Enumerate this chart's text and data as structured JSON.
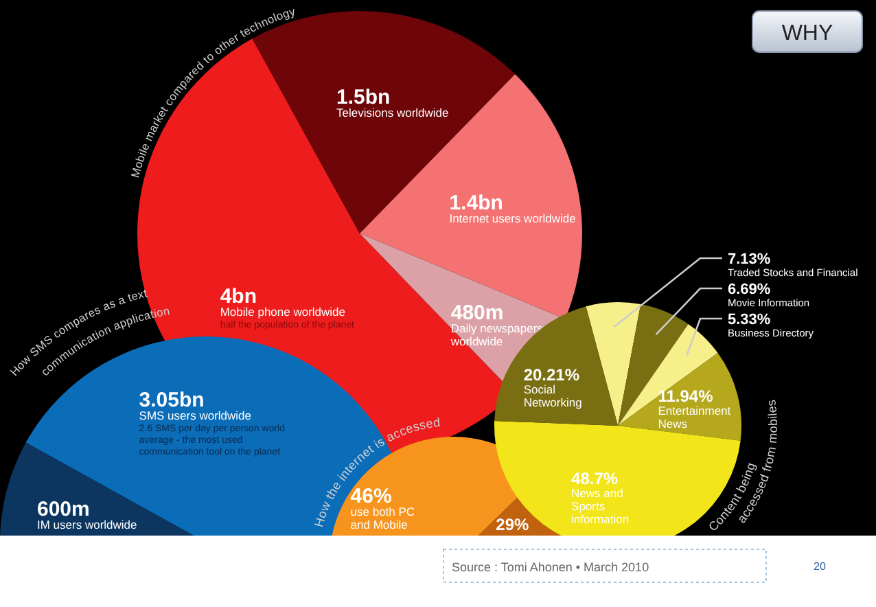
{
  "chart_data": [
    {
      "type": "pie",
      "title": "Mobile market compared to other technology",
      "categories": [
        "Mobile phone worldwide",
        "Televisions worldwide",
        "Internet users worldwide",
        "Daily newspapers worldwide"
      ],
      "values": [
        4000000000,
        1500000000,
        1400000000,
        480000000
      ],
      "value_labels": [
        "4bn",
        "1.5bn",
        "1.4bn",
        "480m"
      ],
      "colors": [
        "#ee1c1c",
        "#6e0508",
        "#f47272",
        "#dba1a6"
      ],
      "annotations": [
        {
          "text": "half the population of the planet",
          "x": "Mobile phone worldwide"
        },
        "WHY",
        "Source : Tomi Ahonen • March 2010",
        "20"
      ]
    },
    {
      "type": "pie",
      "title": "How SMS compares as a text\ncommunication application",
      "categories": [
        "SMS users worldwide",
        "IM users worldwide"
      ],
      "values": [
        3050000000,
        600000000
      ],
      "value_labels": [
        "3.05bn",
        "600m"
      ],
      "colors": [
        "#0b6cb8",
        "#0c3560"
      ],
      "annotations": [
        {
          "text": "2.6 SMS per day per person world average - the most used communication tool on the planet",
          "x": "SMS users worldwide"
        }
      ]
    },
    {
      "type": "pie",
      "title": "How the internet is accessed",
      "categories": [
        "use both PC and Mobile",
        null,
        null
      ],
      "values": [
        46,
        29,
        null
      ],
      "value_labels": [
        "46%",
        "29%",
        null
      ],
      "colors": [
        "#f7941d",
        "#c0620e",
        "#e8841a"
      ]
    },
    {
      "type": "pie",
      "title": "Content being\naccessed from mobiles",
      "categories": [
        "Traded Stocks and Financial",
        "Movie Information",
        "Business Directory",
        "Entertainment News",
        "News and Sports information",
        "Social Networking"
      ],
      "values": [
        7.13,
        6.69,
        5.33,
        11.94,
        48.7,
        20.21
      ],
      "value_labels": [
        "7.13%",
        "6.69%",
        "5.33%",
        "11.94%",
        "48.7%",
        "20.21%"
      ],
      "colors": [
        "#f7ef8a",
        "#7a6e12",
        "#f7ef8a",
        "#b5a81c",
        "#f2e51a",
        "#7a6e12"
      ]
    }
  ]
}
